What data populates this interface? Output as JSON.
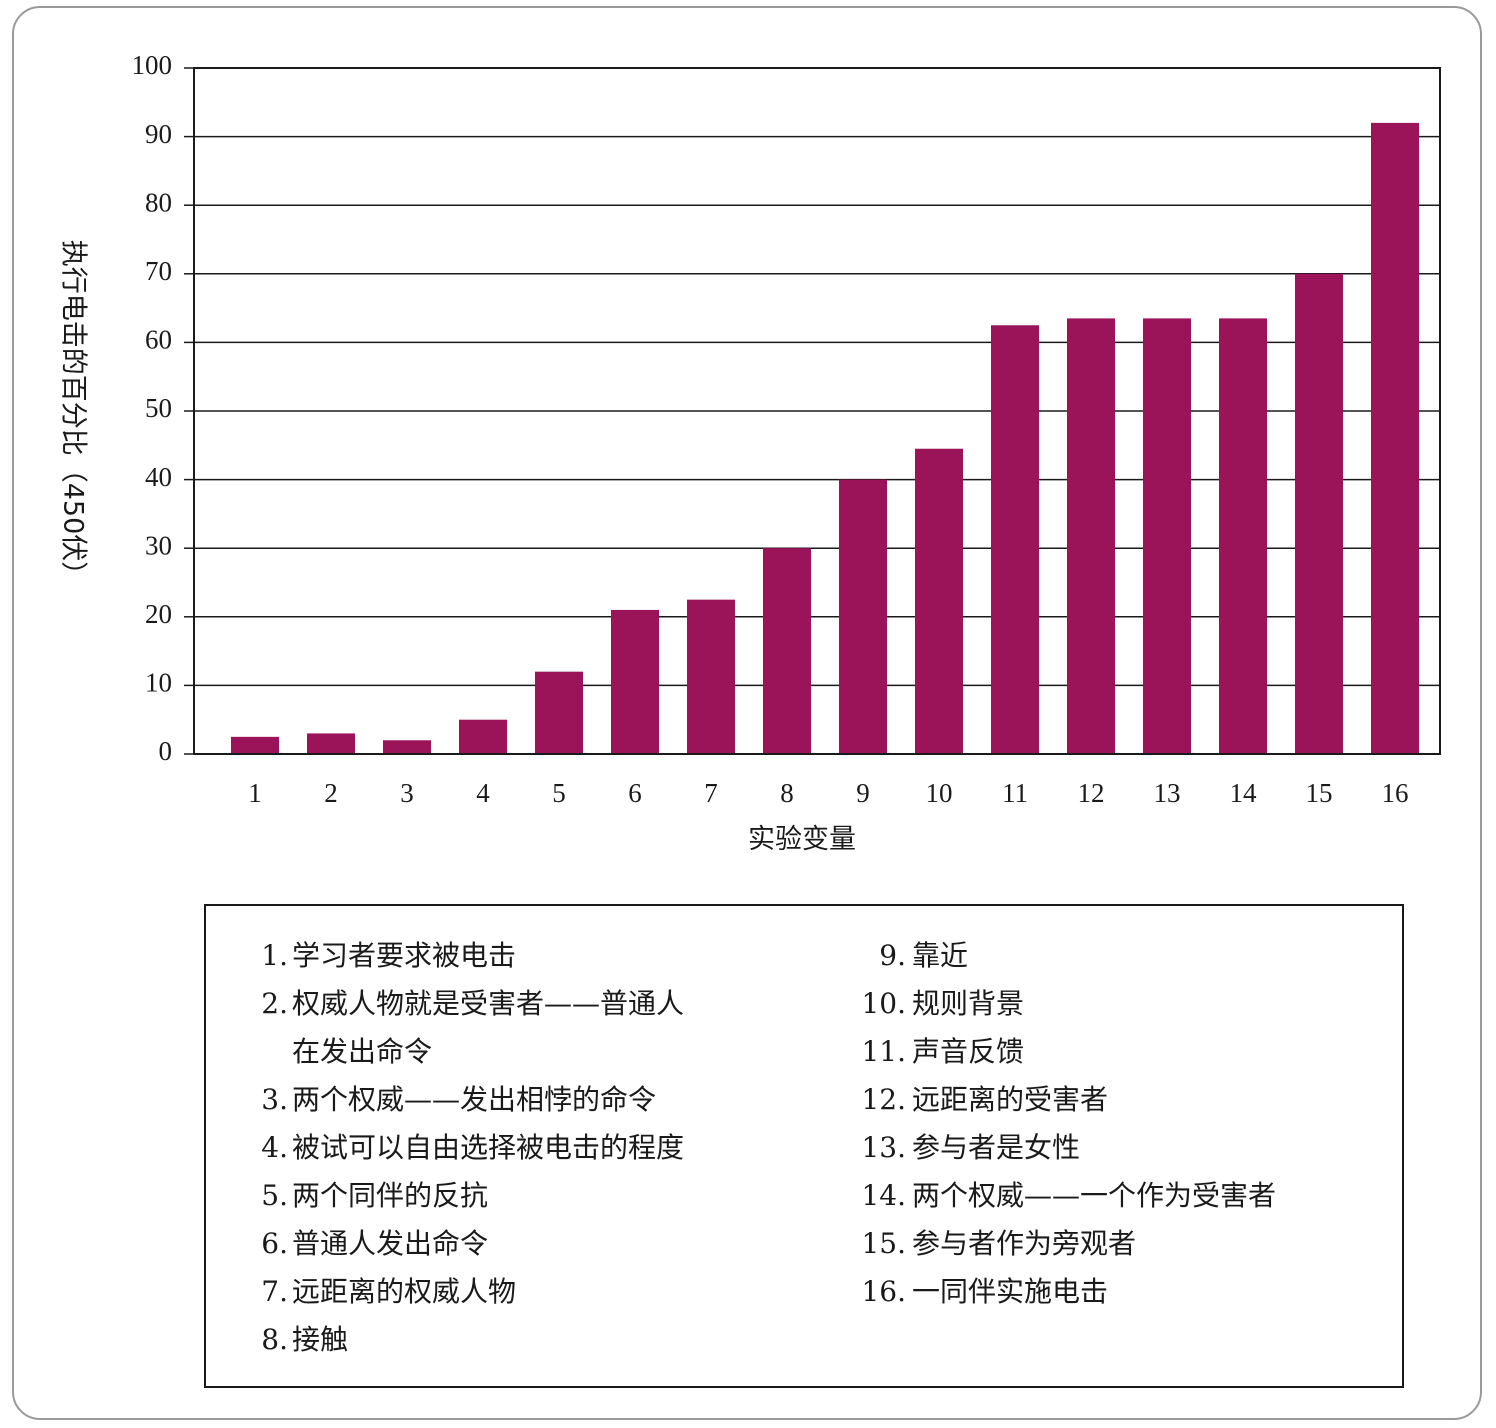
{
  "chart_data": {
    "type": "bar",
    "categories": [
      "1",
      "2",
      "3",
      "4",
      "5",
      "6",
      "7",
      "8",
      "9",
      "10",
      "11",
      "12",
      "13",
      "14",
      "15",
      "16"
    ],
    "values": [
      2.5,
      3,
      2,
      5,
      12,
      21,
      22.5,
      30,
      40,
      44.5,
      62.5,
      63.5,
      63.5,
      63.5,
      70,
      92
    ],
    "xlabel": "实验变量",
    "ylabel": "执行电击的百分比（450伏）",
    "ylim": [
      0,
      100
    ],
    "yticks": [
      0,
      10,
      20,
      30,
      40,
      50,
      60,
      70,
      80,
      90,
      100
    ],
    "grid": true,
    "bar_color": "#9b1459"
  },
  "legend": {
    "left": [
      {
        "num": "1.",
        "text": "学习者要求被电击"
      },
      {
        "num": "2.",
        "text": "权威人物就是受害者——普通人\n在发出命令"
      },
      {
        "num": "3.",
        "text": "两个权威——发出相悖的命令"
      },
      {
        "num": "4.",
        "text": "被试可以自由选择被电击的程度"
      },
      {
        "num": "5.",
        "text": "两个同伴的反抗"
      },
      {
        "num": "6.",
        "text": "普通人发出命令"
      },
      {
        "num": "7.",
        "text": "远距离的权威人物"
      },
      {
        "num": "8.",
        "text": "接触"
      }
    ],
    "right": [
      {
        "num": "9.",
        "text": "靠近"
      },
      {
        "num": "10.",
        "text": "规则背景"
      },
      {
        "num": "11.",
        "text": "声音反馈"
      },
      {
        "num": "12.",
        "text": "远距离的受害者"
      },
      {
        "num": "13.",
        "text": "参与者是女性"
      },
      {
        "num": "14.",
        "text": "两个权威——一个作为受害者"
      },
      {
        "num": "15.",
        "text": "参与者作为旁观者"
      },
      {
        "num": "16.",
        "text": "一同伴实施电击"
      }
    ]
  }
}
